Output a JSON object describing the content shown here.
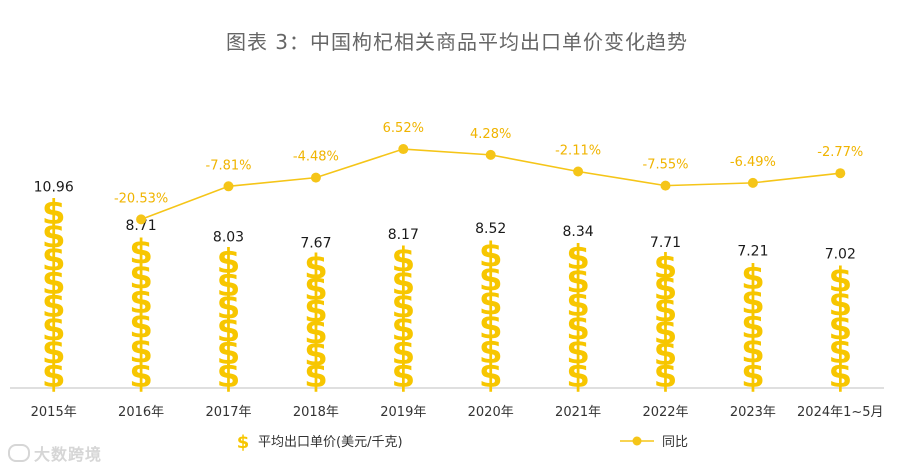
{
  "chart_data": {
    "type": "bar+line",
    "title": "图表 3：中国枸杞相关商品平均出口单价变化趋势",
    "categories": [
      "2015年",
      "2016年",
      "2017年",
      "2018年",
      "2019年",
      "2020年",
      "2021年",
      "2022年",
      "2023年",
      "2024年1~5月"
    ],
    "series": [
      {
        "name": "平均出口单价(美元/千克)",
        "type": "bar",
        "values": [
          10.96,
          8.71,
          8.03,
          7.67,
          8.17,
          8.52,
          8.34,
          7.71,
          7.21,
          7.02
        ],
        "labels": [
          "10.96",
          "8.71",
          "8.03",
          "7.67",
          "8.17",
          "8.52",
          "8.34",
          "7.71",
          "7.21",
          "7.02"
        ]
      },
      {
        "name": "同比",
        "type": "line",
        "values": [
          null,
          -20.53,
          -7.81,
          -4.48,
          6.52,
          4.28,
          -2.11,
          -7.55,
          -6.49,
          -2.77
        ],
        "labels": [
          "",
          "-20.53%",
          "-7.81%",
          "-4.48%",
          "6.52%",
          "4.28%",
          "-2.11%",
          "-7.55%",
          "-6.49%",
          "-2.77%"
        ]
      }
    ],
    "legend": {
      "position": "bottom",
      "items": [
        "平均出口单价(美元/千克)",
        "同比"
      ]
    },
    "colors": {
      "bar": "#f7c600",
      "line": "#f5c518",
      "line_label": "#f0b400",
      "bar_label": "#1a1a1a",
      "axis_text": "#333333",
      "axis": "#bfbfbf"
    }
  },
  "watermark": "大数跨境",
  "bar_glyph": "$"
}
